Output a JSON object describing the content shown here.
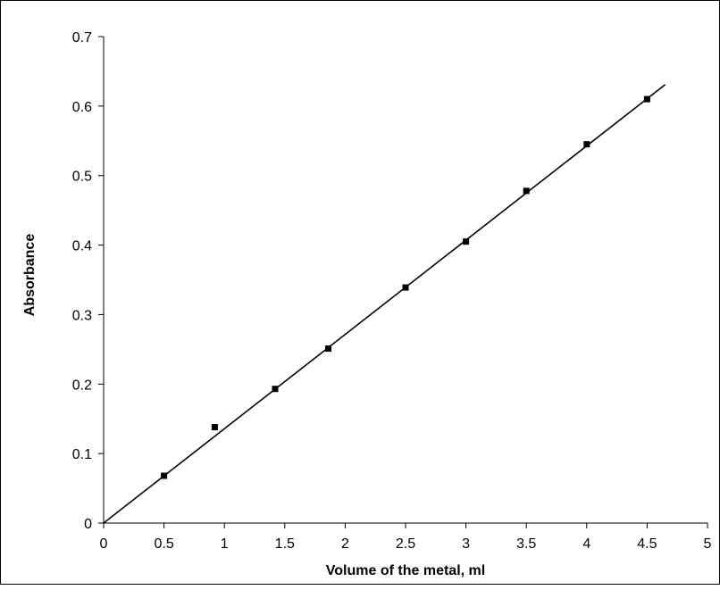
{
  "chart_data": {
    "type": "scatter",
    "title": "",
    "xlabel": "Volume of the metal, ml",
    "ylabel": "Absorbance",
    "xlim": [
      0,
      5
    ],
    "ylim": [
      0,
      0.7
    ],
    "x_ticks": [
      "0",
      "0.5",
      "1",
      "1.5",
      "2",
      "2.5",
      "3",
      "3.5",
      "4",
      "4.5",
      "5"
    ],
    "y_ticks": [
      "0",
      "0.1",
      "0.2",
      "0.3",
      "0.4",
      "0.5",
      "0.6",
      "0.7"
    ],
    "grid": false,
    "legend": "none",
    "series": [
      {
        "x": [
          0.5,
          0.92,
          1.42,
          1.86,
          2.5,
          3.0,
          3.5,
          4.0,
          4.5
        ],
        "y": [
          0.068,
          0.138,
          0.193,
          0.251,
          0.339,
          0.405,
          0.478,
          0.545,
          0.61
        ],
        "marker": "point",
        "color": "#000000"
      }
    ],
    "trendline": {
      "type": "linear",
      "x": [
        0,
        4.65
      ],
      "y": [
        0,
        0.631
      ],
      "color": "#000000"
    }
  }
}
